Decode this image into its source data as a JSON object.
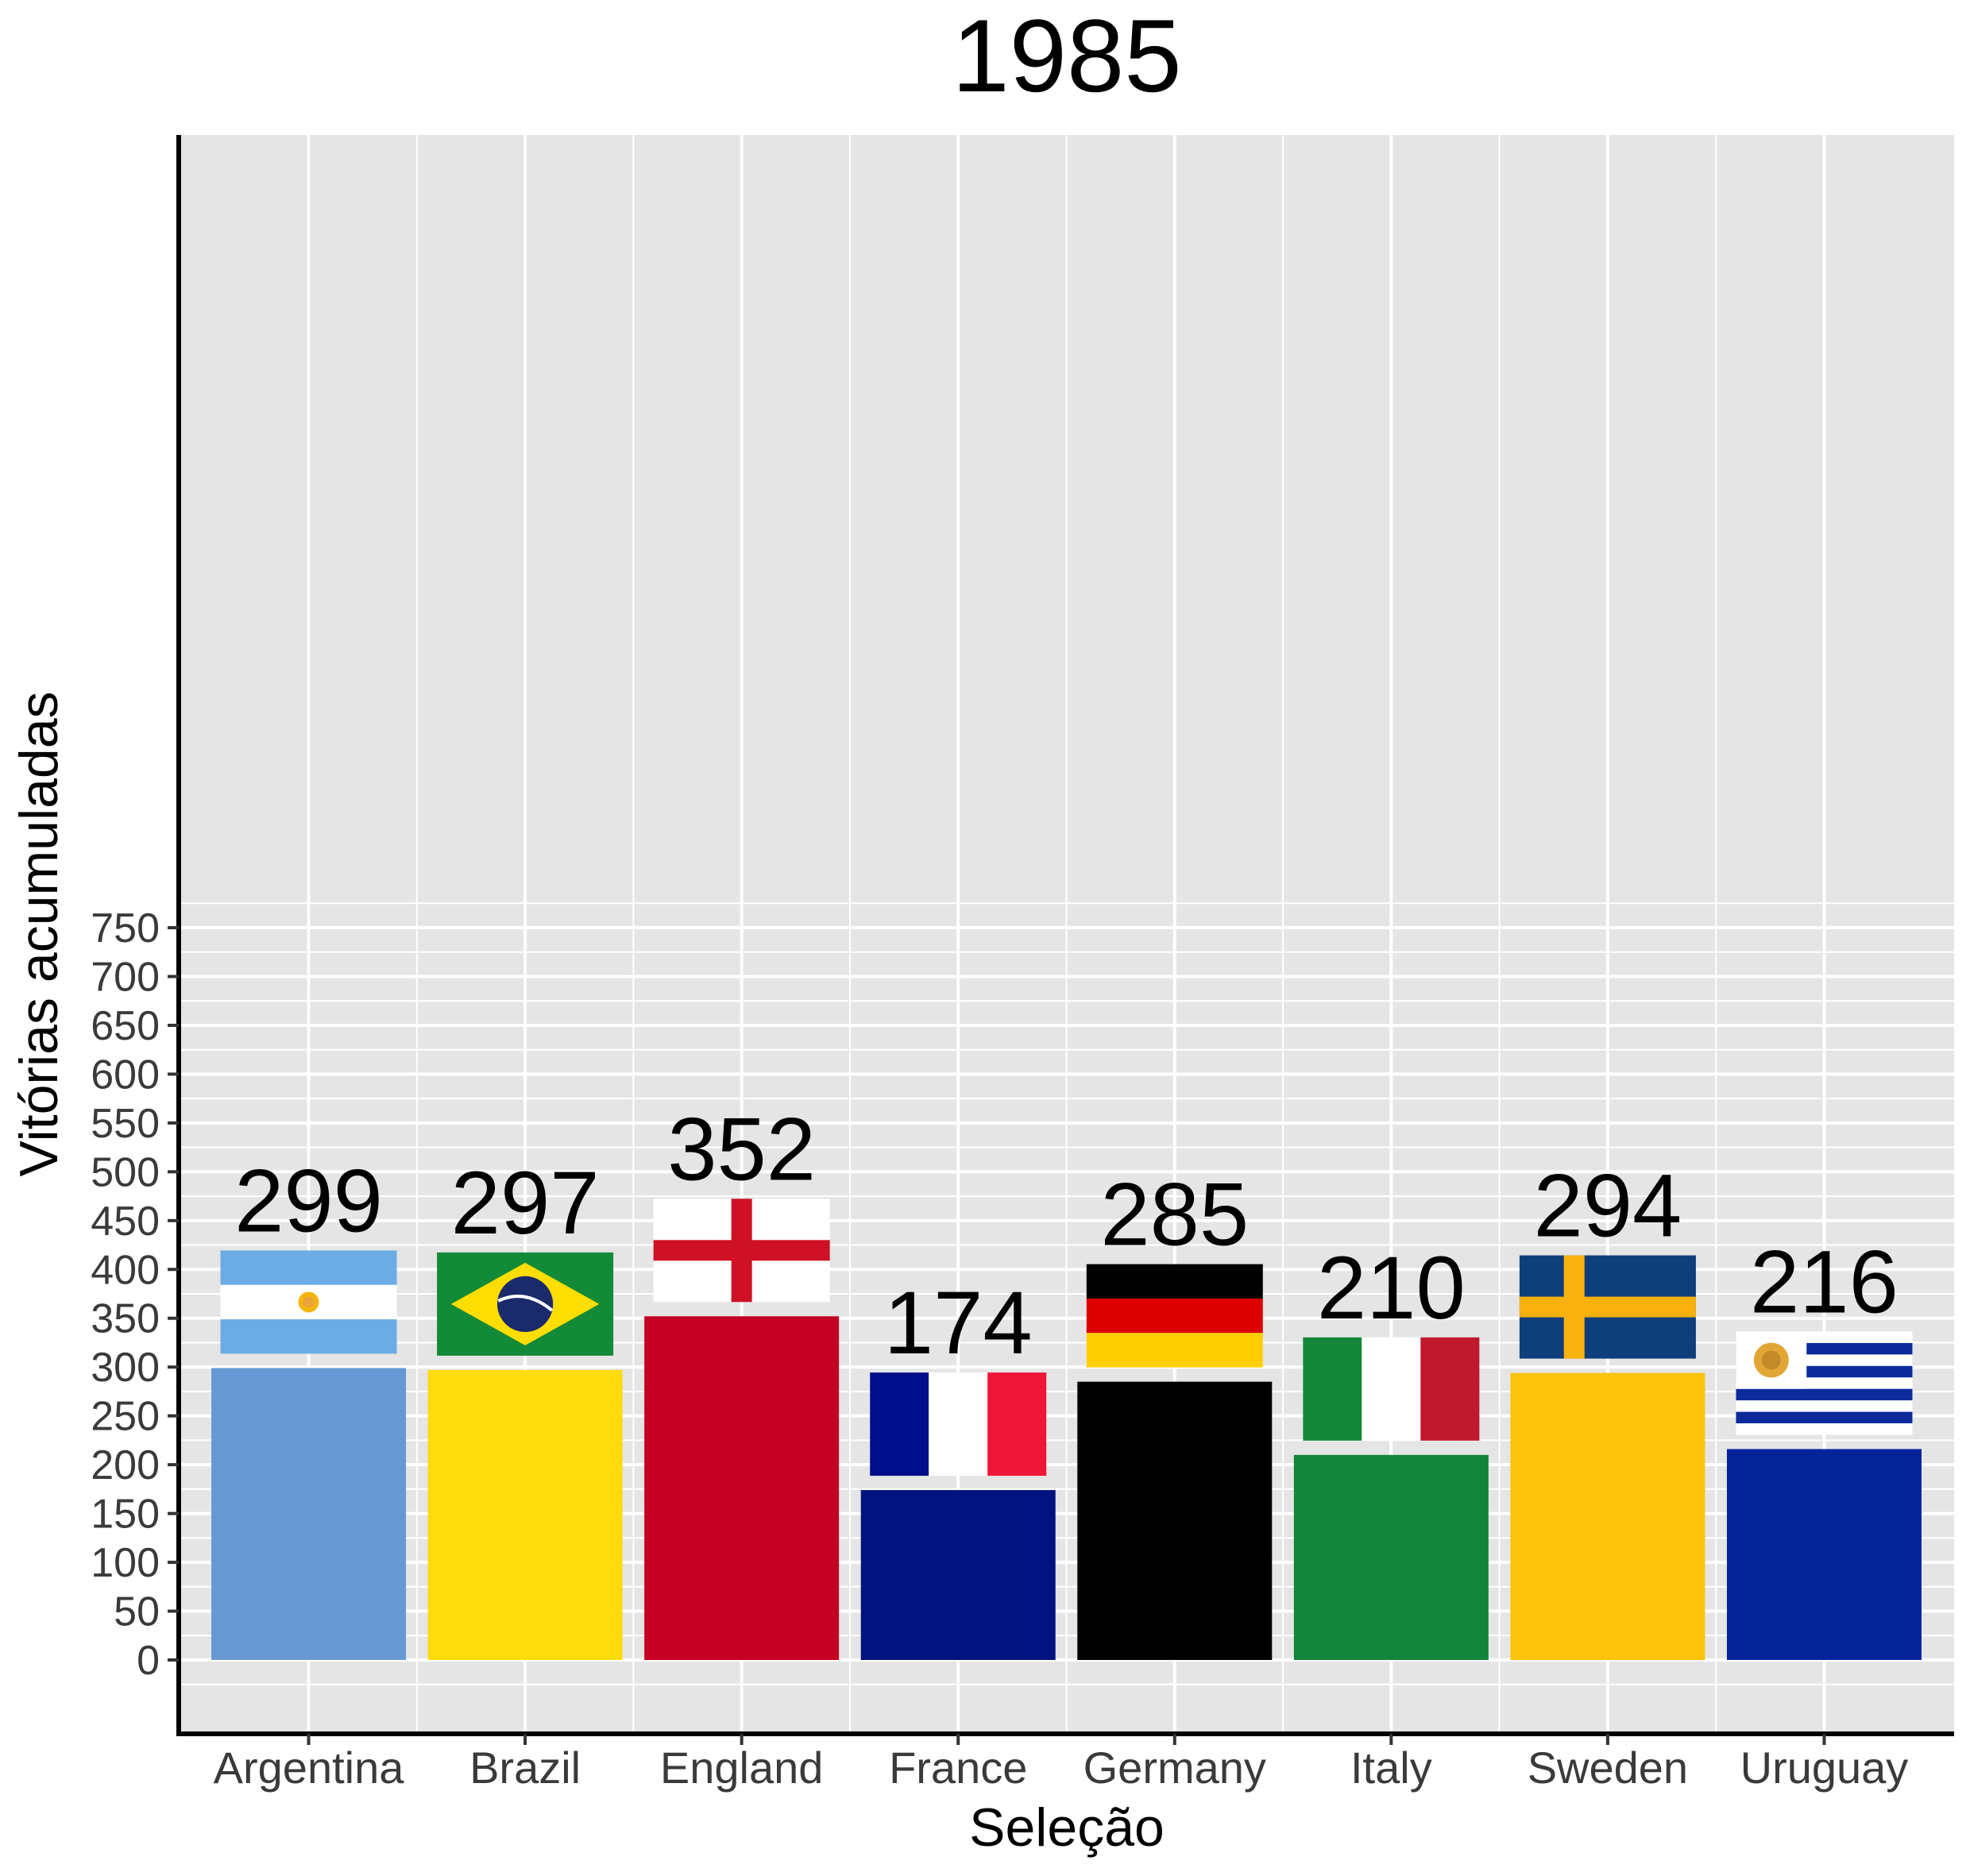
{
  "chart_data": {
    "type": "bar",
    "title": "1985",
    "xlabel": "Seleção",
    "ylabel": "Vitórias acumuladas",
    "ylim": [
      -35,
      785
    ],
    "yticks": [
      0,
      50,
      100,
      150,
      200,
      250,
      300,
      350,
      400,
      450,
      500,
      550,
      600,
      650,
      700,
      750
    ],
    "grid": true,
    "legend": "none",
    "categories": [
      "Argentina",
      "Brazil",
      "England",
      "France",
      "Germany",
      "Italy",
      "Sweden",
      "Uruguay"
    ],
    "values": [
      299,
      297,
      352,
      174,
      285,
      210,
      294,
      216
    ],
    "value_labels": [
      "299",
      "297",
      "352",
      "174",
      "285",
      "210",
      "294",
      "216"
    ],
    "colors": [
      "#6699D3",
      "#FDDB0D",
      "#C40022",
      "#001380",
      "#000000",
      "#118539",
      "#FCC30D",
      "#05249A"
    ],
    "flags": [
      "argentina-flag",
      "brazil-flag",
      "england-flag",
      "france-flag",
      "germany-flag",
      "italy-flag",
      "sweden-flag",
      "uruguay-flag"
    ],
    "panel_color": "#E5E5E5",
    "grid_color": "#FFFFFF"
  }
}
